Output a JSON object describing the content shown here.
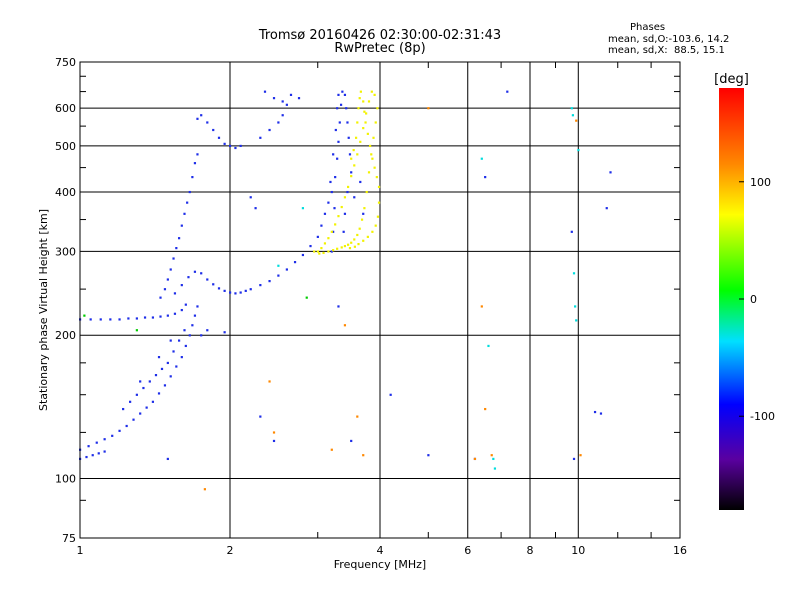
{
  "header": {
    "title_line1": "Tromsø 20160426 02:30:00-02:31:43",
    "title_line2": "RwPretec (8p)",
    "stats_heading": "Phases",
    "stats_o": "mean, sd,O:-103.6, 14.2",
    "stats_x": "mean, sd,X:  88.5, 15.1"
  },
  "chart_data": {
    "type": "scatter",
    "xlabel": "Frequency [MHz]",
    "ylabel": "Stationary phase Virtual Height [km]",
    "xscale": "log",
    "yscale": "log",
    "xlim": [
      1,
      16
    ],
    "ylim": [
      75,
      750
    ],
    "x_ticks": [
      1,
      2,
      4,
      6,
      8,
      10,
      16
    ],
    "x_tick_labels": [
      "1",
      "2",
      "4",
      "6",
      "8",
      "10",
      "16"
    ],
    "y_ticks": [
      75,
      100,
      200,
      300,
      400,
      500,
      600,
      750
    ],
    "y_tick_labels": [
      "75",
      "100",
      "200",
      "300",
      "400",
      "500",
      "600",
      "750"
    ],
    "x_minor_ticks": [
      3,
      5,
      7,
      9,
      12,
      14
    ],
    "y_minor_ticks": [
      90,
      125,
      150,
      175,
      250,
      350,
      450,
      550,
      650,
      700
    ],
    "grid": true,
    "colorbar": {
      "label": "[deg]",
      "range": [
        -180,
        180
      ],
      "ticks": [
        100,
        0,
        -100
      ],
      "tick_labels": [
        "100",
        "0",
        "-100"
      ]
    },
    "series": [
      {
        "mode": "O",
        "phase": -103.6,
        "color": "#1e2ee8",
        "points": [
          [
            1.0,
            110
          ],
          [
            1.03,
            111
          ],
          [
            1.06,
            112
          ],
          [
            1.09,
            113
          ],
          [
            1.12,
            114
          ],
          [
            1.0,
            115
          ],
          [
            1.04,
            117
          ],
          [
            1.08,
            119
          ],
          [
            1.12,
            121
          ],
          [
            1.16,
            123
          ],
          [
            1.2,
            126
          ],
          [
            1.24,
            129
          ],
          [
            1.28,
            133
          ],
          [
            1.32,
            137
          ],
          [
            1.36,
            141
          ],
          [
            1.4,
            145
          ],
          [
            1.44,
            151
          ],
          [
            1.48,
            157
          ],
          [
            1.52,
            164
          ],
          [
            1.56,
            172
          ],
          [
            1.6,
            180
          ],
          [
            1.63,
            190
          ],
          [
            1.66,
            200
          ],
          [
            1.68,
            210
          ],
          [
            1.7,
            220
          ],
          [
            1.72,
            230
          ],
          [
            1.3,
            150
          ],
          [
            1.34,
            155
          ],
          [
            1.38,
            160
          ],
          [
            1.42,
            165
          ],
          [
            1.46,
            170
          ],
          [
            1.5,
            175
          ],
          [
            1.54,
            185
          ],
          [
            1.58,
            195
          ],
          [
            1.62,
            205
          ],
          [
            1.22,
            140
          ],
          [
            1.26,
            145
          ],
          [
            1.32,
            160
          ],
          [
            1.44,
            180
          ],
          [
            1.52,
            195
          ],
          [
            1.0,
            216
          ],
          [
            1.05,
            216
          ],
          [
            1.1,
            216
          ],
          [
            1.15,
            216
          ],
          [
            1.2,
            216
          ],
          [
            1.25,
            217
          ],
          [
            1.3,
            217
          ],
          [
            1.35,
            218
          ],
          [
            1.4,
            218
          ],
          [
            1.45,
            219
          ],
          [
            1.5,
            220
          ],
          [
            1.55,
            222
          ],
          [
            1.6,
            226
          ],
          [
            1.63,
            232
          ],
          [
            1.45,
            240
          ],
          [
            1.48,
            250
          ],
          [
            1.5,
            262
          ],
          [
            1.52,
            275
          ],
          [
            1.54,
            290
          ],
          [
            1.56,
            305
          ],
          [
            1.58,
            320
          ],
          [
            1.6,
            340
          ],
          [
            1.62,
            360
          ],
          [
            1.64,
            380
          ],
          [
            1.66,
            400
          ],
          [
            1.68,
            430
          ],
          [
            1.7,
            460
          ],
          [
            1.72,
            480
          ],
          [
            1.55,
            245
          ],
          [
            1.6,
            255
          ],
          [
            1.65,
            265
          ],
          [
            1.7,
            272
          ],
          [
            1.75,
            270
          ],
          [
            1.8,
            262
          ],
          [
            1.85,
            256
          ],
          [
            1.9,
            251
          ],
          [
            1.95,
            248
          ],
          [
            2.0,
            246
          ],
          [
            2.05,
            245
          ],
          [
            2.1,
            246
          ],
          [
            2.15,
            248
          ],
          [
            2.2,
            250
          ],
          [
            2.3,
            255
          ],
          [
            2.4,
            260
          ],
          [
            2.5,
            267
          ],
          [
            2.6,
            275
          ],
          [
            2.7,
            285
          ],
          [
            2.8,
            295
          ],
          [
            2.9,
            308
          ],
          [
            3.0,
            322
          ],
          [
            3.05,
            340
          ],
          [
            3.1,
            360
          ],
          [
            3.15,
            380
          ],
          [
            3.2,
            400
          ],
          [
            3.25,
            430
          ],
          [
            3.28,
            470
          ],
          [
            3.3,
            510
          ],
          [
            3.32,
            560
          ],
          [
            3.34,
            610
          ],
          [
            3.36,
            650
          ],
          [
            3.2,
            300
          ],
          [
            3.22,
            330
          ],
          [
            3.24,
            370
          ],
          [
            3.18,
            420
          ],
          [
            3.22,
            480
          ],
          [
            3.26,
            540
          ],
          [
            3.28,
            600
          ],
          [
            3.3,
            640
          ],
          [
            3.4,
            640
          ],
          [
            3.42,
            600
          ],
          [
            3.44,
            560
          ],
          [
            3.46,
            520
          ],
          [
            3.48,
            480
          ],
          [
            3.5,
            440
          ],
          [
            3.44,
            400
          ],
          [
            3.4,
            360
          ],
          [
            3.38,
            330
          ],
          [
            1.8,
            560
          ],
          [
            1.85,
            540
          ],
          [
            1.9,
            520
          ],
          [
            1.95,
            505
          ],
          [
            2.0,
            500
          ],
          [
            2.05,
            495
          ],
          [
            2.1,
            500
          ],
          [
            1.75,
            580
          ],
          [
            1.72,
            570
          ],
          [
            2.3,
            520
          ],
          [
            2.4,
            540
          ],
          [
            2.5,
            560
          ],
          [
            2.55,
            580
          ],
          [
            2.6,
            610
          ],
          [
            2.65,
            640
          ],
          [
            2.45,
            630
          ],
          [
            2.35,
            650
          ],
          [
            2.55,
            620
          ],
          [
            2.75,
            630
          ],
          [
            1.75,
            200
          ],
          [
            1.8,
            205
          ],
          [
            1.95,
            203
          ],
          [
            2.45,
            120
          ],
          [
            2.3,
            135
          ],
          [
            1.5,
            110
          ],
          [
            3.3,
            230
          ],
          [
            3.5,
            120
          ],
          [
            4.2,
            150
          ],
          [
            5.0,
            112
          ],
          [
            6.2,
            110
          ],
          [
            7.2,
            650
          ],
          [
            9.7,
            330
          ],
          [
            9.8,
            110
          ],
          [
            10.8,
            138
          ],
          [
            11.1,
            137
          ],
          [
            11.4,
            370
          ],
          [
            11.6,
            440
          ],
          [
            6.5,
            430
          ],
          [
            3.65,
            420
          ],
          [
            3.55,
            390
          ],
          [
            3.7,
            360
          ],
          [
            2.2,
            390
          ],
          [
            2.25,
            370
          ]
        ]
      },
      {
        "mode": "X",
        "phase": 88.5,
        "color": "#f2f200",
        "points": [
          [
            3.0,
            300
          ],
          [
            3.05,
            305
          ],
          [
            3.1,
            312
          ],
          [
            3.15,
            320
          ],
          [
            3.2,
            330
          ],
          [
            3.25,
            342
          ],
          [
            3.3,
            356
          ],
          [
            3.35,
            372
          ],
          [
            3.4,
            390
          ],
          [
            3.45,
            410
          ],
          [
            3.5,
            432
          ],
          [
            3.55,
            455
          ],
          [
            3.6,
            480
          ],
          [
            3.65,
            510
          ],
          [
            3.7,
            545
          ],
          [
            3.75,
            585
          ],
          [
            3.8,
            620
          ],
          [
            3.85,
            650
          ],
          [
            3.9,
            640
          ],
          [
            3.95,
            600
          ],
          [
            3.92,
            560
          ],
          [
            3.88,
            520
          ],
          [
            3.84,
            480
          ],
          [
            3.8,
            440
          ],
          [
            3.76,
            400
          ],
          [
            3.72,
            370
          ],
          [
            3.68,
            350
          ],
          [
            3.64,
            335
          ],
          [
            3.6,
            325
          ],
          [
            3.55,
            318
          ],
          [
            3.5,
            313
          ],
          [
            3.45,
            310
          ],
          [
            3.4,
            308
          ],
          [
            3.35,
            306
          ],
          [
            3.28,
            304
          ],
          [
            3.22,
            302
          ],
          [
            3.15,
            300
          ],
          [
            3.08,
            298
          ],
          [
            3.02,
            297
          ],
          [
            2.95,
            300
          ],
          [
            3.7,
            620
          ],
          [
            3.72,
            590
          ],
          [
            3.74,
            560
          ],
          [
            3.78,
            530
          ],
          [
            3.82,
            500
          ],
          [
            3.86,
            470
          ],
          [
            3.9,
            450
          ],
          [
            3.94,
            430
          ],
          [
            3.98,
            410
          ],
          [
            3.98,
            380
          ],
          [
            3.96,
            355
          ],
          [
            3.92,
            340
          ],
          [
            3.86,
            330
          ],
          [
            3.78,
            322
          ],
          [
            3.7,
            316
          ],
          [
            3.62,
            311
          ],
          [
            3.56,
            307
          ],
          [
            3.48,
            305
          ],
          [
            3.6,
            560
          ],
          [
            3.62,
            600
          ],
          [
            3.64,
            630
          ],
          [
            3.66,
            650
          ],
          [
            3.58,
            520
          ],
          [
            3.54,
            490
          ],
          [
            3.5,
            470
          ]
        ]
      },
      {
        "mode": "scatter",
        "phase": null,
        "color": "#ff8800",
        "points": [
          [
            1.78,
            95
          ],
          [
            2.4,
            160
          ],
          [
            2.45,
            125
          ],
          [
            3.2,
            115
          ],
          [
            3.4,
            210
          ],
          [
            3.6,
            135
          ],
          [
            3.7,
            112
          ],
          [
            5.0,
            600
          ],
          [
            6.2,
            110
          ],
          [
            6.4,
            230
          ],
          [
            6.5,
            140
          ],
          [
            6.7,
            112
          ],
          [
            9.9,
            565
          ],
          [
            10.1,
            112
          ]
        ]
      },
      {
        "mode": "scatter",
        "phase": null,
        "color": "#00dddd",
        "points": [
          [
            6.4,
            470
          ],
          [
            6.6,
            190
          ],
          [
            6.75,
            110
          ],
          [
            6.8,
            105
          ],
          [
            9.7,
            600
          ],
          [
            9.75,
            580
          ],
          [
            9.8,
            270
          ],
          [
            9.85,
            230
          ],
          [
            9.9,
            215
          ],
          [
            10.0,
            490
          ],
          [
            2.8,
            370
          ],
          [
            2.5,
            280
          ]
        ]
      },
      {
        "mode": "scatter",
        "phase": null,
        "color": "#00cc00",
        "points": [
          [
            1.3,
            205
          ],
          [
            2.85,
            240
          ],
          [
            1.02,
            220
          ]
        ]
      }
    ]
  }
}
